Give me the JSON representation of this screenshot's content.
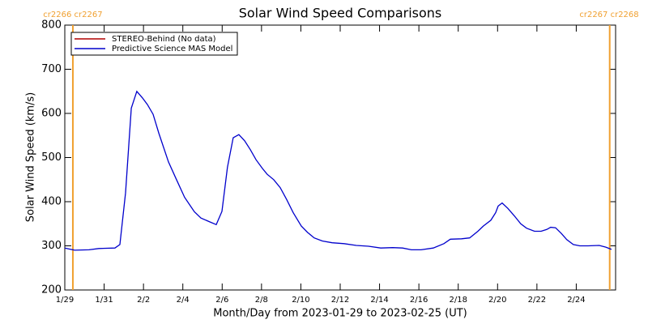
{
  "chart_data": {
    "type": "line",
    "title": "Solar Wind Speed Comparisons",
    "xlabel": "Month/Day from 2023-01-29 to 2023-02-25 (UT)",
    "ylabel": "Solar Wind Speed (km/s)",
    "x": [
      0,
      0.5,
      1.23,
      1.73,
      2.55,
      2.8,
      3.09,
      3.38,
      3.66,
      3.95,
      4.2,
      4.49,
      4.78,
      5.27,
      5.68,
      6.09,
      6.59,
      6.92,
      7.33,
      7.7,
      7.99,
      8.27,
      8.56,
      8.85,
      9.14,
      9.43,
      9.72,
      10.05,
      10.29,
      10.62,
      10.95,
      11.28,
      11.61,
      12.02,
      12.35,
      12.68,
      13.09,
      13.59,
      14.2,
      14.82,
      15.44,
      16.06,
      16.67,
      17.17,
      17.62,
      18.11,
      18.73,
      19.27,
      19.6,
      20.17,
      20.58,
      21.0,
      21.28,
      21.66,
      21.9,
      22.03,
      22.23,
      22.52,
      22.85,
      23.18,
      23.47,
      23.88,
      24.21,
      24.5,
      24.7,
      24.95,
      25.24,
      25.52,
      25.85,
      26.18,
      26.6,
      27.17,
      27.5,
      27.79
    ],
    "series": [
      {
        "name": "STEREO-Behind (No data)",
        "color": "#b00000",
        "values": [
          null,
          null,
          null,
          null,
          null,
          null,
          null,
          null,
          null,
          null,
          null,
          null,
          null,
          null,
          null,
          null,
          null,
          null,
          null,
          null,
          null,
          null,
          null,
          null,
          null,
          null,
          null,
          null,
          null,
          null,
          null,
          null,
          null,
          null,
          null,
          null,
          null,
          null,
          null,
          null,
          null,
          null,
          null,
          null,
          null,
          null,
          null,
          null,
          null,
          null,
          null,
          null,
          null,
          null,
          null,
          null,
          null,
          null,
          null,
          null,
          null,
          null,
          null,
          null,
          null,
          null,
          null,
          null,
          null,
          null,
          null,
          null,
          null,
          null
        ]
      },
      {
        "name": "Predictive Science MAS Model",
        "color": "#0000cc",
        "values": [
          295,
          290,
          291,
          294,
          295,
          303,
          420,
          612,
          650,
          635,
          620,
          598,
          555,
          490,
          450,
          410,
          377,
          363,
          355,
          348,
          378,
          478,
          545,
          552,
          538,
          518,
          495,
          475,
          462,
          450,
          432,
          405,
          375,
          345,
          330,
          318,
          311,
          307,
          305,
          301,
          299,
          295,
          296,
          295,
          291,
          291,
          295,
          305,
          315,
          316,
          318,
          333,
          345,
          358,
          375,
          390,
          397,
          385,
          368,
          350,
          340,
          333,
          333,
          337,
          342,
          341,
          328,
          314,
          303,
          300,
          300,
          301,
          297,
          292
        ]
      }
    ],
    "xlim": [
      0,
      28
    ],
    "xticks": [
      {
        "value": 0,
        "label": "1/29"
      },
      {
        "value": 2,
        "label": "1/31"
      },
      {
        "value": 4,
        "label": "2/2"
      },
      {
        "value": 6,
        "label": "2/4"
      },
      {
        "value": 8,
        "label": "2/6"
      },
      {
        "value": 10,
        "label": "2/8"
      },
      {
        "value": 12,
        "label": "2/10"
      },
      {
        "value": 14,
        "label": "2/12"
      },
      {
        "value": 16,
        "label": "2/14"
      },
      {
        "value": 18,
        "label": "2/16"
      },
      {
        "value": 20,
        "label": "2/18"
      },
      {
        "value": 22,
        "label": "2/20"
      },
      {
        "value": 24,
        "label": "2/22"
      },
      {
        "value": 26,
        "label": "2/24"
      }
    ],
    "ylim": [
      200,
      800
    ],
    "yticks": [
      200,
      300,
      400,
      500,
      600,
      700,
      800
    ],
    "legend": "upper left",
    "annotations": [
      {
        "text": "cr2266 cr2267",
        "x": 0.41,
        "color": "#f0a030"
      },
      {
        "text": "cr2267 cr2268",
        "x": 27.7,
        "color": "#f0a030"
      }
    ]
  }
}
